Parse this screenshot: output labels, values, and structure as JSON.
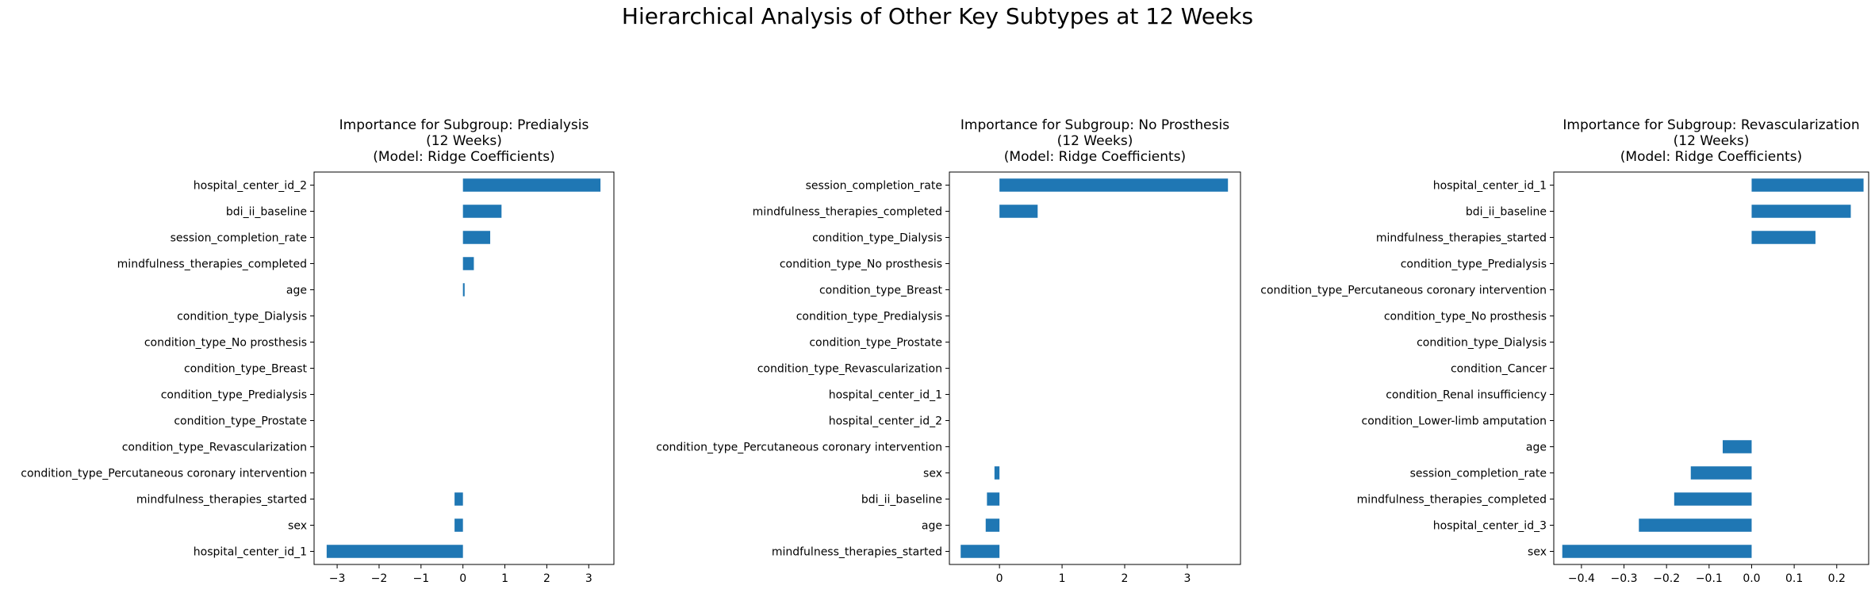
{
  "figure_title": "Hierarchical Analysis of Other Key Subtypes at 12 Weeks",
  "chart_data": [
    {
      "type": "bar",
      "orientation": "horizontal",
      "title_lines": [
        "Importance for Subgroup: Predialysis",
        "(12 Weeks)",
        "(Model: Ridge Coefficients)"
      ],
      "xlim": [
        -3.55,
        3.6
      ],
      "xticks": [
        -3,
        -2,
        -1,
        0,
        1,
        2,
        3
      ],
      "xtick_labels": [
        "−3",
        "−2",
        "−1",
        "0",
        "1",
        "2",
        "3"
      ],
      "categories": [
        "hospital_center_id_2",
        "bdi_ii_baseline",
        "session_completion_rate",
        "mindfulness_therapies_completed",
        "age",
        "condition_type_Dialysis",
        "condition_type_No prosthesis",
        "condition_type_Breast",
        "condition_type_Predialysis",
        "condition_type_Prostate",
        "condition_type_Revascularization",
        "condition_type_Percutaneous coronary intervention",
        "mindfulness_therapies_started",
        "sex",
        "hospital_center_id_1"
      ],
      "values": [
        3.28,
        0.92,
        0.65,
        0.26,
        0.04,
        0,
        0,
        0,
        0,
        0,
        0,
        0,
        -0.2,
        -0.2,
        -3.25
      ],
      "bar_color": "#1f77b4",
      "grid": false
    },
    {
      "type": "bar",
      "orientation": "horizontal",
      "title_lines": [
        "Importance for Subgroup: No Prosthesis",
        "(12 Weeks)",
        "(Model: Ridge Coefficients)"
      ],
      "xlim": [
        -0.8,
        3.85
      ],
      "xticks": [
        0,
        1,
        2,
        3
      ],
      "xtick_labels": [
        "0",
        "1",
        "2",
        "3"
      ],
      "categories": [
        "session_completion_rate",
        "mindfulness_therapies_completed",
        "condition_type_Dialysis",
        "condition_type_No prosthesis",
        "condition_type_Breast",
        "condition_type_Predialysis",
        "condition_type_Prostate",
        "condition_type_Revascularization",
        "hospital_center_id_1",
        "hospital_center_id_2",
        "condition_type_Percutaneous coronary intervention",
        "sex",
        "bdi_ii_baseline",
        "age",
        "mindfulness_therapies_started"
      ],
      "values": [
        3.65,
        0.61,
        0,
        0,
        0,
        0,
        0,
        0,
        0,
        0,
        0,
        -0.08,
        -0.2,
        -0.22,
        -0.62
      ],
      "bar_color": "#1f77b4",
      "grid": false
    },
    {
      "type": "bar",
      "orientation": "horizontal",
      "title_lines": [
        "Importance for Subgroup: Revascularization",
        "(12 Weeks)",
        "(Model: Ridge Coefficients)"
      ],
      "xlim": [
        -0.465,
        0.275
      ],
      "xticks": [
        -0.4,
        -0.3,
        -0.2,
        -0.1,
        0.0,
        0.1,
        0.2
      ],
      "xtick_labels": [
        "−0.4",
        "−0.3",
        "−0.2",
        "−0.1",
        "0.0",
        "0.1",
        "0.2"
      ],
      "categories": [
        "hospital_center_id_1",
        "bdi_ii_baseline",
        "mindfulness_therapies_started",
        "condition_type_Predialysis",
        "condition_type_Percutaneous coronary intervention",
        "condition_type_No prosthesis",
        "condition_type_Dialysis",
        "condition_Cancer",
        "condition_Renal insufficiency",
        "condition_Lower-limb amputation",
        "age",
        "session_completion_rate",
        "mindfulness_therapies_completed",
        "hospital_center_id_3",
        "sex"
      ],
      "values": [
        0.263,
        0.233,
        0.15,
        0,
        0,
        0,
        0,
        0,
        0,
        0,
        -0.068,
        -0.143,
        -0.182,
        -0.265,
        -0.445
      ],
      "bar_color": "#1f77b4",
      "grid": false
    }
  ]
}
